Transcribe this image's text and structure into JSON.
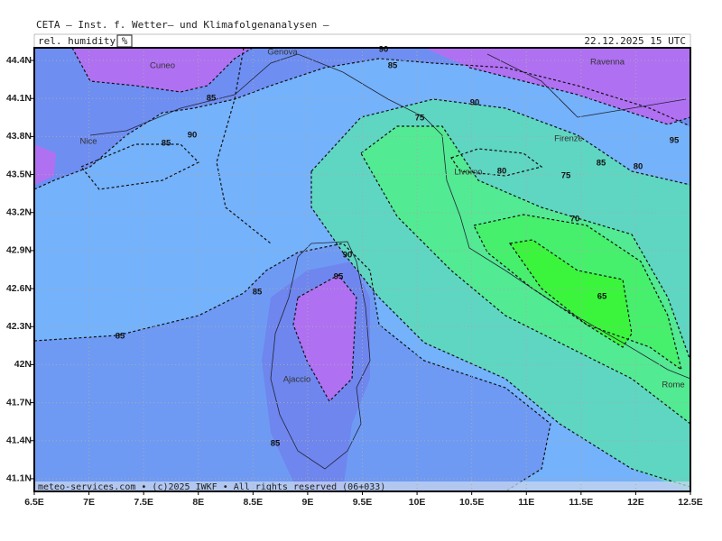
{
  "header": {
    "title": "CETA — Inst. f. Wetter— und Klimafolgenanalysen —",
    "variable": "rel. humidity",
    "unit": "%",
    "datetime": "22.12.2025 15 UTC"
  },
  "footer": "meteo-services.com • (c)2025 IWKF • All rights reserved (06+033)",
  "map": {
    "xlim": [
      6.5,
      12.5
    ],
    "ylim": [
      41.0,
      44.5
    ],
    "xticks": [
      {
        "value": 6.5,
        "label": "6.5E"
      },
      {
        "value": 7,
        "label": "7E"
      },
      {
        "value": 7.5,
        "label": "7.5E"
      },
      {
        "value": 8,
        "label": "8E"
      },
      {
        "value": 8.5,
        "label": "8.5E"
      },
      {
        "value": 9,
        "label": "9E"
      },
      {
        "value": 9.5,
        "label": "9.5E"
      },
      {
        "value": 10,
        "label": "10E"
      },
      {
        "value": 10.5,
        "label": "10.5E"
      },
      {
        "value": 11,
        "label": "11E"
      },
      {
        "value": 11.5,
        "label": "11.5E"
      },
      {
        "value": 12,
        "label": "12E"
      },
      {
        "value": 12.5,
        "label": "12.5E"
      }
    ],
    "yticks": [
      {
        "value": 44.4,
        "label": "44.4N"
      },
      {
        "value": 44.1,
        "label": "44.1N"
      },
      {
        "value": 43.8,
        "label": "43.8N"
      },
      {
        "value": 43.5,
        "label": "43.5N"
      },
      {
        "value": 43.2,
        "label": "43.2N"
      },
      {
        "value": 42.9,
        "label": "42.9N"
      },
      {
        "value": 42.6,
        "label": "42.6N"
      },
      {
        "value": 42.3,
        "label": "42.3N"
      },
      {
        "value": 42.0,
        "label": "42N"
      },
      {
        "value": 41.7,
        "label": "41.7N"
      },
      {
        "value": 41.4,
        "label": "41.4N"
      },
      {
        "value": 41.1,
        "label": "41.1N"
      }
    ],
    "contour_labels": [
      90,
      85,
      85,
      90,
      75,
      90,
      85,
      95,
      85,
      80,
      80,
      75,
      70,
      90,
      95,
      85,
      65,
      85,
      85
    ],
    "places": [
      "Cuneo",
      "Genova",
      "Ravenna",
      "Nice",
      "Firenze",
      "Livorno",
      "Rome",
      "Ajaccio"
    ]
  }
}
